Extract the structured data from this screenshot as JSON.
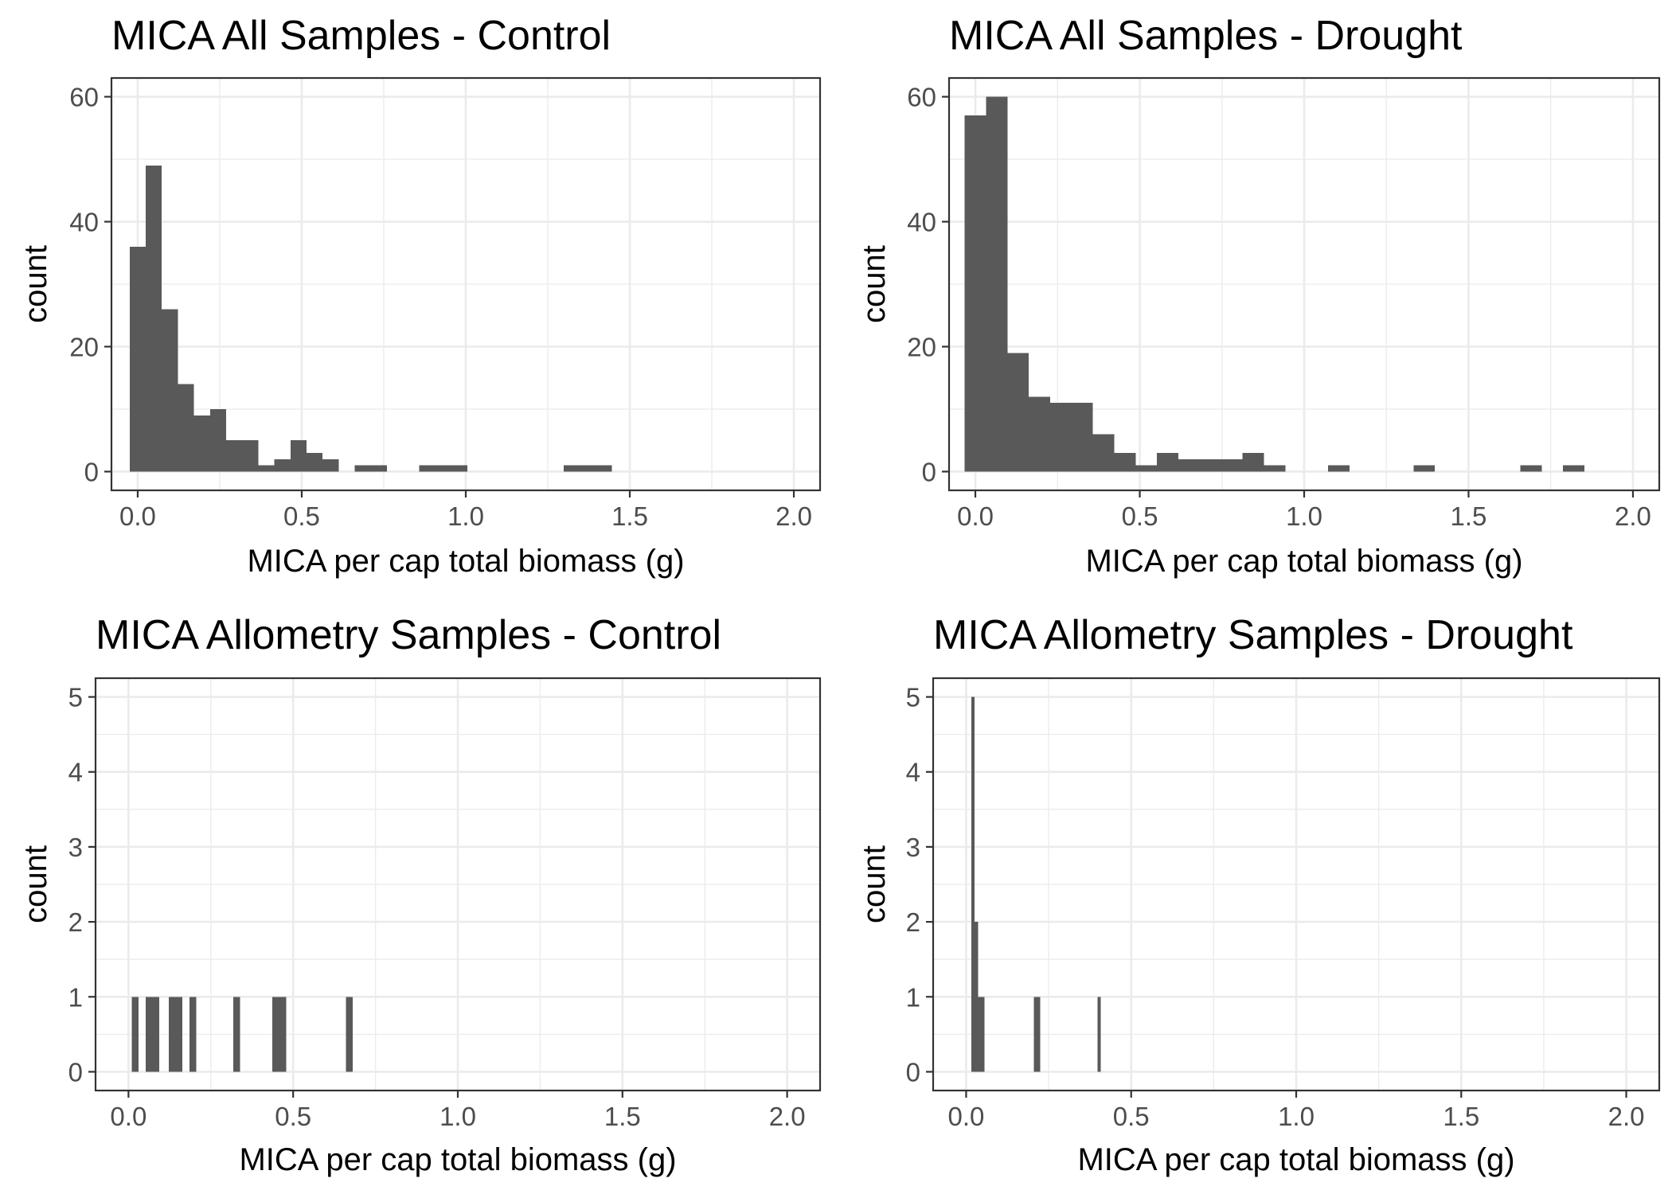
{
  "colors": {
    "bar": "#595959",
    "grid": "#ebebeb",
    "panel_border": "#333333",
    "tick": "#333333",
    "tick_label": "#4d4d4d",
    "background": "#ffffff"
  },
  "chart_data": [
    {
      "type": "bar",
      "title": "MICA All Samples - Control",
      "xlabel": "MICA per cap total biomass (g)",
      "ylabel": "count",
      "xlim": [
        -0.08,
        2.08
      ],
      "ylim": [
        -3,
        63
      ],
      "xticks": [
        0.0,
        0.5,
        1.0,
        1.5,
        2.0
      ],
      "xtick_labels": [
        "0.0",
        "0.5",
        "1.0",
        "1.5",
        "2.0"
      ],
      "yticks": [
        0,
        20,
        40,
        60
      ],
      "ytick_labels": [
        "0",
        "20",
        "40",
        "60"
      ],
      "grid": true,
      "bin_start": -0.0245,
      "bin_width": 0.049,
      "values": [
        36,
        49,
        26,
        14,
        9,
        10,
        5,
        5,
        1,
        2,
        5,
        3,
        2,
        0,
        1,
        1,
        0,
        0,
        1,
        1,
        1,
        0,
        0,
        0,
        0,
        0,
        0,
        1,
        1,
        1
      ]
    },
    {
      "type": "bar",
      "title": "MICA All Samples - Drought",
      "xlabel": "MICA per cap total biomass (g)",
      "ylabel": "count",
      "xlim": [
        -0.08,
        2.08
      ],
      "ylim": [
        -3,
        63
      ],
      "xticks": [
        0.0,
        0.5,
        1.0,
        1.5,
        2.0
      ],
      "xtick_labels": [
        "0.0",
        "0.5",
        "1.0",
        "1.5",
        "2.0"
      ],
      "yticks": [
        0,
        20,
        40,
        60
      ],
      "ytick_labels": [
        "0",
        "20",
        "40",
        "60"
      ],
      "grid": true,
      "bin_start": -0.0325,
      "bin_width": 0.065,
      "values": [
        57,
        60,
        19,
        12,
        11,
        11,
        6,
        3,
        1,
        3,
        2,
        2,
        2,
        3,
        1,
        0,
        0,
        1,
        0,
        0,
        0,
        1,
        0,
        0,
        0,
        0,
        1,
        0,
        1
      ]
    },
    {
      "type": "bar",
      "title": "MICA Allometry Samples - Control",
      "xlabel": "MICA per cap total biomass (g)",
      "ylabel": "count",
      "xlim": [
        -0.1,
        2.1
      ],
      "ylim": [
        -0.25,
        5.25
      ],
      "xticks": [
        0.0,
        0.5,
        1.0,
        1.5,
        2.0
      ],
      "xtick_labels": [
        "0.0",
        "0.5",
        "1.0",
        "1.5",
        "2.0"
      ],
      "yticks": [
        0,
        1,
        2,
        3,
        4,
        5
      ],
      "ytick_labels": [
        "0",
        "1",
        "2",
        "3",
        "4",
        "5"
      ],
      "grid": true,
      "bars": [
        {
          "x0": 0.01,
          "x1": 0.031,
          "count": 1
        },
        {
          "x0": 0.052,
          "x1": 0.094,
          "count": 1
        },
        {
          "x0": 0.122,
          "x1": 0.164,
          "count": 1
        },
        {
          "x0": 0.185,
          "x1": 0.206,
          "count": 1
        },
        {
          "x0": 0.318,
          "x1": 0.339,
          "count": 1
        },
        {
          "x0": 0.437,
          "x1": 0.479,
          "count": 1
        },
        {
          "x0": 0.66,
          "x1": 0.681,
          "count": 1
        }
      ]
    },
    {
      "type": "bar",
      "title": "MICA Allometry Samples - Drought",
      "xlabel": "MICA per cap total biomass (g)",
      "ylabel": "count",
      "xlim": [
        -0.1,
        2.1
      ],
      "ylim": [
        -0.25,
        5.25
      ],
      "xticks": [
        0.0,
        0.5,
        1.0,
        1.5,
        2.0
      ],
      "xtick_labels": [
        "0.0",
        "0.5",
        "1.0",
        "1.5",
        "2.0"
      ],
      "yticks": [
        0,
        1,
        2,
        3,
        4,
        5
      ],
      "ytick_labels": [
        "0",
        "1",
        "2",
        "3",
        "4",
        "5"
      ],
      "grid": true,
      "bars": [
        {
          "x0": 0.016,
          "x1": 0.026,
          "count": 5
        },
        {
          "x0": 0.026,
          "x1": 0.036,
          "count": 2
        },
        {
          "x0": 0.036,
          "x1": 0.046,
          "count": 1
        },
        {
          "x0": 0.046,
          "x1": 0.055,
          "count": 1
        },
        {
          "x0": 0.205,
          "x1": 0.215,
          "count": 1
        },
        {
          "x0": 0.215,
          "x1": 0.225,
          "count": 1
        },
        {
          "x0": 0.398,
          "x1": 0.408,
          "count": 1
        }
      ]
    }
  ]
}
